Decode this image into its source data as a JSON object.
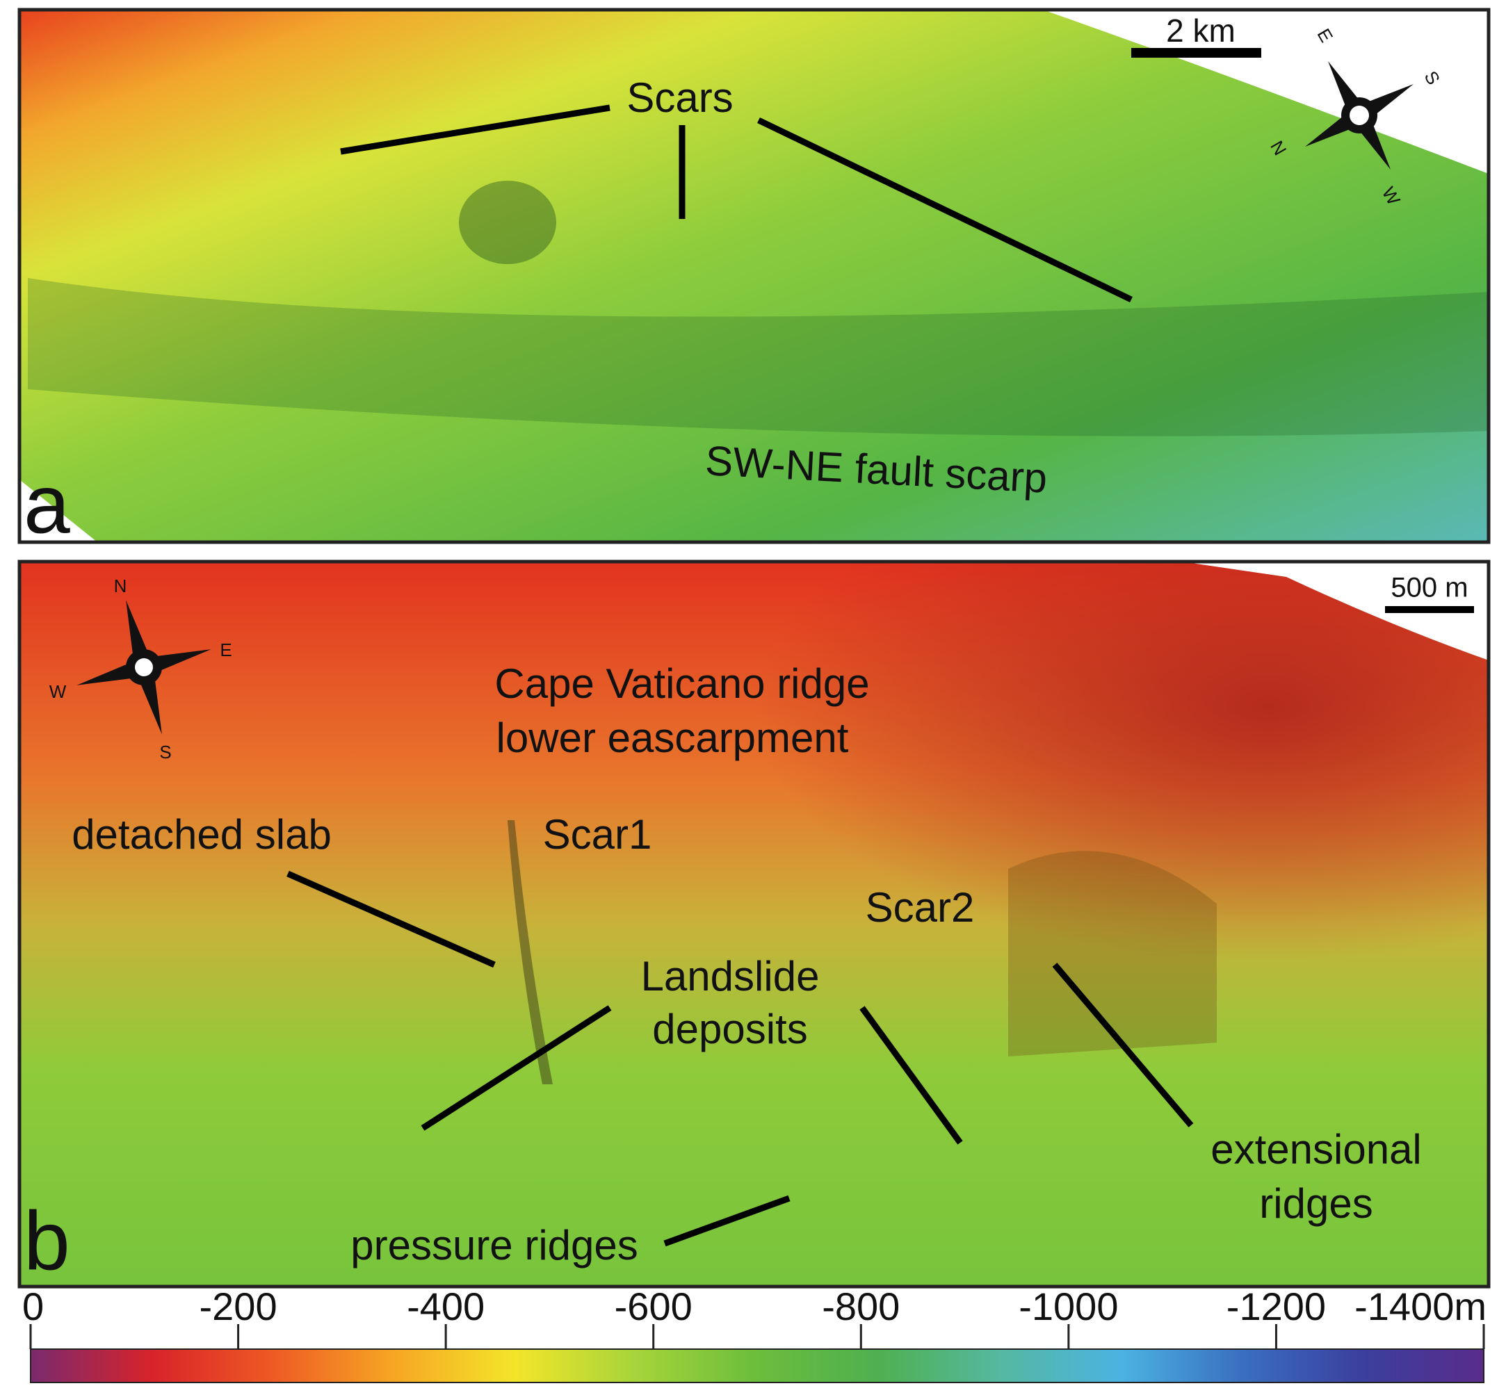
{
  "panel_a": {
    "letter": "a",
    "scale_bar": "2 km",
    "compass": [
      "E",
      "S",
      "W",
      "N"
    ],
    "labels": [
      "Scars",
      "SW-NE fault scarp"
    ]
  },
  "panel_b": {
    "letter": "b",
    "scale_bar": "500 m",
    "compass": [
      "N",
      "E",
      "S",
      "W"
    ],
    "labels": [
      "Cape Vaticano ridge",
      "lower eascarpment",
      "detached slab",
      "Scar1",
      "Scar2",
      "Landslide",
      "deposits",
      "extensional",
      "ridges",
      "pressure ridges"
    ]
  },
  "colorbar": {
    "lim": [
      0,
      -1400
    ],
    "ticks": [
      0,
      -200,
      -400,
      -600,
      -800,
      -1000,
      -1200,
      {
        "value": -1400,
        "label": "-1400m"
      }
    ],
    "colors": [
      "#7a2a6e",
      "#d8232a",
      "#ee5a24",
      "#f6a623",
      "#f3e52a",
      "#a6d43a",
      "#6bbd3c",
      "#4fb050",
      "#55b8a0",
      "#4bb3e2",
      "#3a6fc0",
      "#3b3f9e",
      "#5a2c8a"
    ]
  }
}
